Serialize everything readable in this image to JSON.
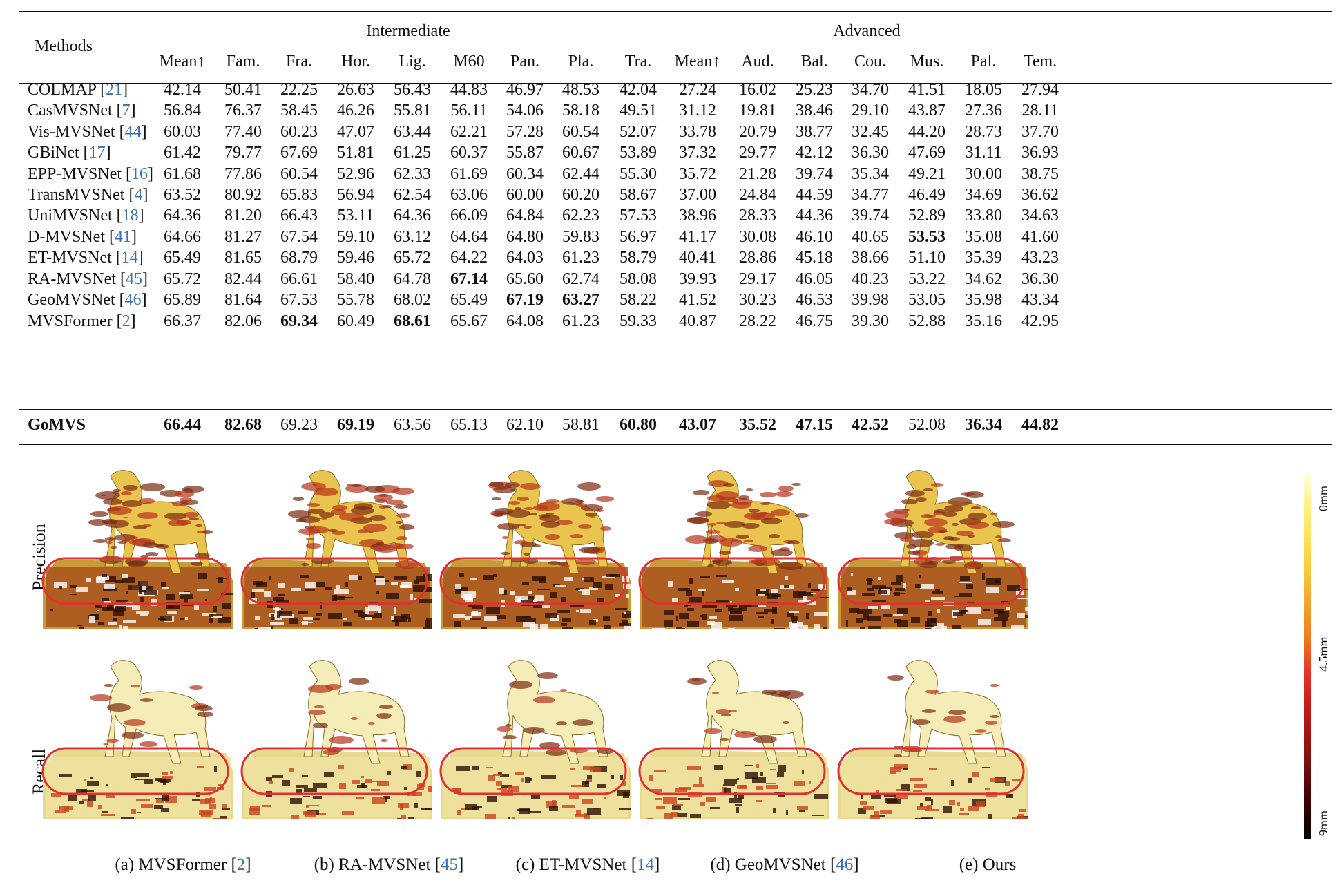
{
  "table": {
    "methods_header": "Methods",
    "groups": [
      {
        "title": "Intermediate",
        "columns": [
          "Mean↑",
          "Fam.",
          "Fra.",
          "Hor.",
          "Lig.",
          "M60",
          "Pan.",
          "Pla.",
          "Tra."
        ]
      },
      {
        "title": "Advanced",
        "columns": [
          "Mean↑",
          "Aud.",
          "Bal.",
          "Cou.",
          "Mus.",
          "Pal.",
          "Tem."
        ]
      }
    ],
    "rows": [
      {
        "method": "COLMAP",
        "cite": "21",
        "values": [
          "42.14",
          "50.41",
          "22.25",
          "26.63",
          "56.43",
          "44.83",
          "46.97",
          "48.53",
          "42.04",
          "27.24",
          "16.02",
          "25.23",
          "34.70",
          "41.51",
          "18.05",
          "27.94"
        ],
        "bold": []
      },
      {
        "method": "CasMVSNet",
        "cite": "7",
        "values": [
          "56.84",
          "76.37",
          "58.45",
          "46.26",
          "55.81",
          "56.11",
          "54.06",
          "58.18",
          "49.51",
          "31.12",
          "19.81",
          "38.46",
          "29.10",
          "43.87",
          "27.36",
          "28.11"
        ],
        "bold": []
      },
      {
        "method": "Vis-MVSNet",
        "cite": "44",
        "values": [
          "60.03",
          "77.40",
          "60.23",
          "47.07",
          "63.44",
          "62.21",
          "57.28",
          "60.54",
          "52.07",
          "33.78",
          "20.79",
          "38.77",
          "32.45",
          "44.20",
          "28.73",
          "37.70"
        ],
        "bold": []
      },
      {
        "method": "GBiNet",
        "cite": "17",
        "values": [
          "61.42",
          "79.77",
          "67.69",
          "51.81",
          "61.25",
          "60.37",
          "55.87",
          "60.67",
          "53.89",
          "37.32",
          "29.77",
          "42.12",
          "36.30",
          "47.69",
          "31.11",
          "36.93"
        ],
        "bold": []
      },
      {
        "method": "EPP-MVSNet",
        "cite": "16",
        "values": [
          "61.68",
          "77.86",
          "60.54",
          "52.96",
          "62.33",
          "61.69",
          "60.34",
          "62.44",
          "55.30",
          "35.72",
          "21.28",
          "39.74",
          "35.34",
          "49.21",
          "30.00",
          "38.75"
        ],
        "bold": []
      },
      {
        "method": "TransMVSNet",
        "cite": "4",
        "values": [
          "63.52",
          "80.92",
          "65.83",
          "56.94",
          "62.54",
          "63.06",
          "60.00",
          "60.20",
          "58.67",
          "37.00",
          "24.84",
          "44.59",
          "34.77",
          "46.49",
          "34.69",
          "36.62"
        ],
        "bold": []
      },
      {
        "method": "UniMVSNet",
        "cite": "18",
        "values": [
          "64.36",
          "81.20",
          "66.43",
          "53.11",
          "64.36",
          "66.09",
          "64.84",
          "62.23",
          "57.53",
          "38.96",
          "28.33",
          "44.36",
          "39.74",
          "52.89",
          "33.80",
          "34.63"
        ],
        "bold": []
      },
      {
        "method": "D-MVSNet",
        "cite": "41",
        "values": [
          "64.66",
          "81.27",
          "67.54",
          "59.10",
          "63.12",
          "64.64",
          "64.80",
          "59.83",
          "56.97",
          "41.17",
          "30.08",
          "46.10",
          "40.65",
          "53.53",
          "35.08",
          "41.60"
        ],
        "bold": [
          13
        ]
      },
      {
        "method": "ET-MVSNet",
        "cite": "14",
        "values": [
          "65.49",
          "81.65",
          "68.79",
          "59.46",
          "65.72",
          "64.22",
          "64.03",
          "61.23",
          "58.79",
          "40.41",
          "28.86",
          "45.18",
          "38.66",
          "51.10",
          "35.39",
          "43.23"
        ],
        "bold": []
      },
      {
        "method": "RA-MVSNet",
        "cite": "45",
        "values": [
          "65.72",
          "82.44",
          "66.61",
          "58.40",
          "64.78",
          "67.14",
          "65.60",
          "62.74",
          "58.08",
          "39.93",
          "29.17",
          "46.05",
          "40.23",
          "53.22",
          "34.62",
          "36.30"
        ],
        "bold": [
          5
        ]
      },
      {
        "method": "GeoMVSNet",
        "cite": "46",
        "values": [
          "65.89",
          "81.64",
          "67.53",
          "55.78",
          "68.02",
          "65.49",
          "67.19",
          "63.27",
          "58.22",
          "41.52",
          "30.23",
          "46.53",
          "39.98",
          "53.05",
          "35.98",
          "43.34"
        ],
        "bold": [
          6,
          7
        ]
      },
      {
        "method": "MVSFormer",
        "cite": "2",
        "values": [
          "66.37",
          "82.06",
          "69.34",
          "60.49",
          "68.61",
          "65.67",
          "64.08",
          "61.23",
          "59.33",
          "40.87",
          "28.22",
          "46.75",
          "39.30",
          "52.88",
          "35.16",
          "42.95"
        ],
        "bold": [
          2,
          4
        ]
      }
    ],
    "final_row": {
      "method": "GoMVS",
      "values": [
        "66.44",
        "82.68",
        "69.23",
        "69.19",
        "63.56",
        "65.13",
        "62.10",
        "58.81",
        "60.80",
        "43.07",
        "35.52",
        "47.15",
        "42.52",
        "52.08",
        "36.34",
        "44.82"
      ],
      "bold": [
        0,
        1,
        3,
        8,
        9,
        10,
        11,
        12,
        14,
        15
      ]
    }
  },
  "figure": {
    "row_labels": [
      "Precision",
      "Recall"
    ],
    "captions": [
      {
        "text": "(a) MVSFormer ",
        "cite": "2"
      },
      {
        "text": "(b) RA-MVSNet ",
        "cite": "45"
      },
      {
        "text": "(c) ET-MVSNet ",
        "cite": "14"
      },
      {
        "text": "(d) GeoMVSNet  ",
        "cite": "46"
      },
      {
        "text": "(e) Ours",
        "cite": ""
      }
    ],
    "colorbar": {
      "top": "0mm",
      "middle": "4.5mm",
      "bottom": "9mm"
    },
    "colors": {
      "highlight": "#e03030",
      "cite": "#3b6fb6"
    }
  }
}
